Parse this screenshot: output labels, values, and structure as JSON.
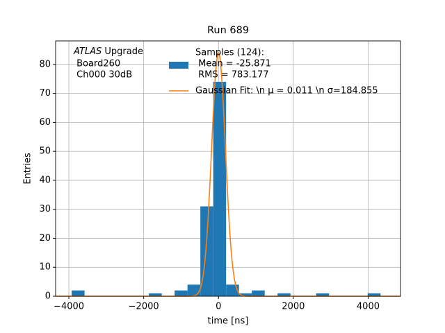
{
  "chart_data": {
    "type": "histogram",
    "title": "Run 689",
    "xlabel": "time [ns]",
    "ylabel": "Entries",
    "bins": [
      -3925,
      -3581,
      -3237,
      -2893,
      -2549,
      -2205,
      -1861,
      -1517,
      -1173,
      -829,
      -485,
      -141,
      203,
      547,
      891,
      1235,
      1579,
      1923,
      2267,
      2611,
      2955,
      3299,
      3643,
      3987,
      4331,
      4675
    ],
    "counts": [
      2,
      0,
      0,
      0,
      0,
      0,
      1,
      0,
      2,
      4,
      31,
      74,
      4,
      1,
      2,
      0,
      1,
      0,
      0,
      1,
      0,
      0,
      0,
      1,
      0
    ],
    "color": "#1f77b4",
    "histogram_legend": [
      "Samples (124):",
      " Mean = -25.871",
      " RMS = 783.177"
    ],
    "fit": {
      "name": "Gaussian Fit: \\n μ = 0.011 \\n σ=184.855",
      "color": "#ff7f0e",
      "mu": 0.011,
      "sigma": 184.855,
      "amplitude": 84
    },
    "annotation": {
      "italic": "ATLAS",
      "rest": " Upgrade",
      "lines": [
        " Board260",
        " Ch000 30dB"
      ]
    },
    "xlim": [
      -4354,
      4865
    ],
    "ylim": [
      0,
      88.1
    ],
    "xticks": [
      {
        "value": -4000,
        "label": "−4000"
      },
      {
        "value": -2000,
        "label": "−2000"
      },
      0,
      2000,
      4000
    ],
    "yticks": [
      0,
      10,
      20,
      30,
      40,
      50,
      60,
      70,
      80
    ],
    "grid": true
  }
}
